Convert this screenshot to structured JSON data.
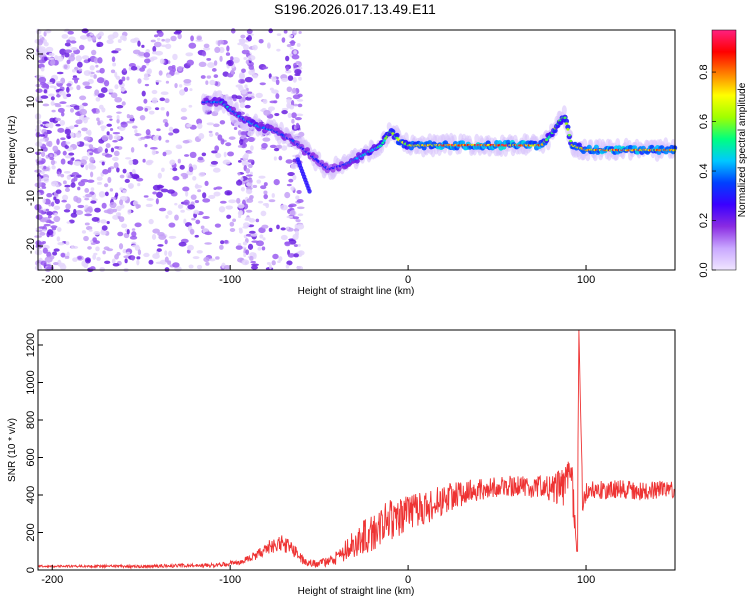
{
  "title": "S196.2026.017.13.49.E11",
  "chart_data": [
    {
      "type": "heatmap",
      "title": "S196.2026.017.13.49.E11",
      "xlabel": "Height of straight line (km)",
      "ylabel": "Frequency (Hz)",
      "xlim": [
        -208,
        150
      ],
      "ylim": [
        -25,
        25
      ],
      "xticks": [
        -200,
        -100,
        0,
        100
      ],
      "yticks": [
        -20,
        -10,
        0,
        10,
        20
      ],
      "colorbar": {
        "label": "Normalized spectral amplitude",
        "range": [
          0,
          0.97
        ],
        "ticks": [
          0.0,
          0.2,
          0.4,
          0.6,
          0.8
        ],
        "colormap": [
          "#f0e6ff",
          "#c9a8ff",
          "#8a2be2",
          "#3a00ff",
          "#0040ff",
          "#00c8ff",
          "#00ff80",
          "#a0ff00",
          "#ffff00",
          "#ff8000",
          "#ff0000",
          "#ff2080"
        ]
      },
      "ridge": {
        "x": [
          -115,
          -105,
          -95,
          -85,
          -75,
          -65,
          -55,
          -45,
          -35,
          -25,
          -15,
          -10,
          -5,
          0,
          10,
          20,
          40,
          60,
          75,
          80,
          85,
          88,
          92,
          100,
          120,
          150
        ],
        "y": [
          10,
          10,
          7,
          5,
          4,
          2,
          -1,
          -4,
          -3,
          -1,
          1,
          4,
          2,
          1,
          1,
          1,
          1,
          1,
          1,
          3,
          6,
          7,
          1,
          0,
          0,
          0
        ],
        "amplitude": [
          0.35,
          0.5,
          0.4,
          0.45,
          0.4,
          0.35,
          0.35,
          0.3,
          0.4,
          0.5,
          0.6,
          0.6,
          0.7,
          0.75,
          0.85,
          0.9,
          0.9,
          0.9,
          0.85,
          0.6,
          0.6,
          0.6,
          0.7,
          0.85,
          0.9,
          0.8
        ]
      },
      "noise_region_x": [
        -208,
        -60
      ]
    },
    {
      "type": "line",
      "xlabel": "Height of straight line (km)",
      "ylabel": "SNR (10 * v/v)",
      "xlim": [
        -208,
        150
      ],
      "ylim": [
        0,
        1280
      ],
      "xticks": [
        -200,
        -100,
        0,
        100
      ],
      "yticks": [
        0,
        200,
        400,
        600,
        800,
        1000,
        1200
      ],
      "line_color": "#ee3333",
      "series": [
        {
          "name": "SNR",
          "x": [
            -208,
            -150,
            -110,
            -95,
            -85,
            -78,
            -72,
            -65,
            -58,
            -50,
            -40,
            -30,
            -20,
            -10,
            0,
            10,
            20,
            30,
            40,
            50,
            60,
            70,
            80,
            88,
            92,
            95,
            96,
            98,
            100,
            110,
            120,
            130,
            140,
            150
          ],
          "y": [
            20,
            20,
            25,
            40,
            80,
            120,
            150,
            110,
            40,
            30,
            70,
            150,
            200,
            270,
            300,
            330,
            380,
            410,
            430,
            440,
            450,
            440,
            440,
            450,
            460,
            100,
            1280,
            380,
            420,
            430,
            430,
            420,
            430,
            430
          ],
          "jitter": [
            5,
            8,
            10,
            15,
            25,
            40,
            45,
            40,
            20,
            20,
            40,
            80,
            100,
            110,
            100,
            90,
            80,
            70,
            60,
            55,
            55,
            55,
            70,
            120,
            160,
            0,
            0,
            70,
            55,
            50,
            50,
            50,
            50,
            50
          ]
        }
      ]
    }
  ]
}
